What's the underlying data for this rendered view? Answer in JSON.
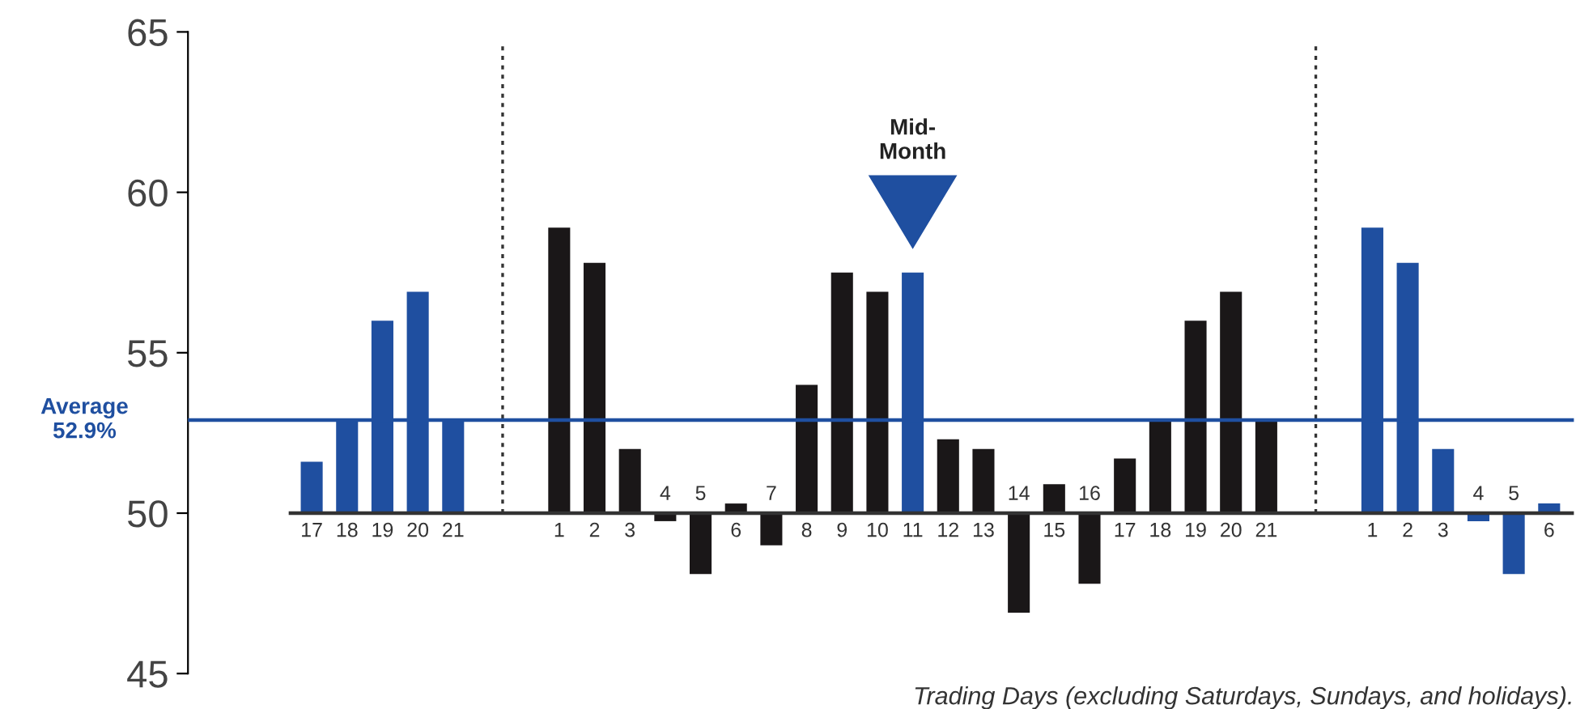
{
  "chart_data": {
    "type": "bar",
    "categories": [
      "17",
      "18",
      "19",
      "20",
      "21",
      null,
      null,
      "1",
      "2",
      "3",
      "4",
      "5",
      "6",
      "7",
      "8",
      "9",
      "10",
      "11",
      "12",
      "13",
      "14",
      "15",
      "16",
      "17",
      "18",
      "19",
      "20",
      "21",
      null,
      null,
      "1",
      "2",
      "3",
      "4",
      "5",
      "6"
    ],
    "base": [
      50,
      50,
      50,
      50,
      50,
      null,
      null,
      50,
      50,
      50,
      50,
      50,
      50,
      50,
      50,
      50,
      50,
      50,
      50,
      50,
      50,
      50,
      50,
      50,
      50,
      50,
      50,
      50,
      null,
      null,
      50,
      50,
      50,
      50,
      50,
      50
    ],
    "values": [
      1.6,
      2.9,
      6.0,
      6.9,
      2.9,
      null,
      null,
      8.9,
      7.8,
      2.0,
      -0.25,
      -1.9,
      0.3,
      -1.0,
      4.0,
      7.5,
      6.9,
      7.5,
      2.3,
      2.0,
      -3.1,
      0.9,
      -2.2,
      1.7,
      2.9,
      6.0,
      6.9,
      2.9,
      null,
      null,
      8.9,
      7.8,
      2.0,
      -0.25,
      -1.9,
      0.3
    ],
    "colors": [
      "#1f4fa0",
      "#1f4fa0",
      "#1f4fa0",
      "#1f4fa0",
      "#1f4fa0",
      null,
      null,
      "#1a1718",
      "#1a1718",
      "#1a1718",
      "#1a1718",
      "#1a1718",
      "#1a1718",
      "#1a1718",
      "#1a1718",
      "#1a1718",
      "#1a1718",
      "#1f4fa0",
      "#1a1718",
      "#1a1718",
      "#1a1718",
      "#1a1718",
      "#1a1718",
      "#1a1718",
      "#1a1718",
      "#1a1718",
      "#1a1718",
      "#1a1718",
      null,
      null,
      "#1f4fa0",
      "#1f4fa0",
      "#1f4fa0",
      "#1f4fa0",
      "#1f4fa0",
      "#1f4fa0"
    ],
    "ylim": [
      45,
      65
    ],
    "yticks": [
      45,
      50,
      55,
      60,
      65
    ],
    "xlabel": "Trading Days (excluding Saturdays, Sundays, and holidays).",
    "ref_lines": [
      {
        "axis": "y",
        "value": 52.9,
        "label": "Average\n52.9%",
        "color": "#1f4fa0"
      }
    ],
    "annotations": [
      "Mid-\nMonth"
    ],
    "grid": false
  }
}
